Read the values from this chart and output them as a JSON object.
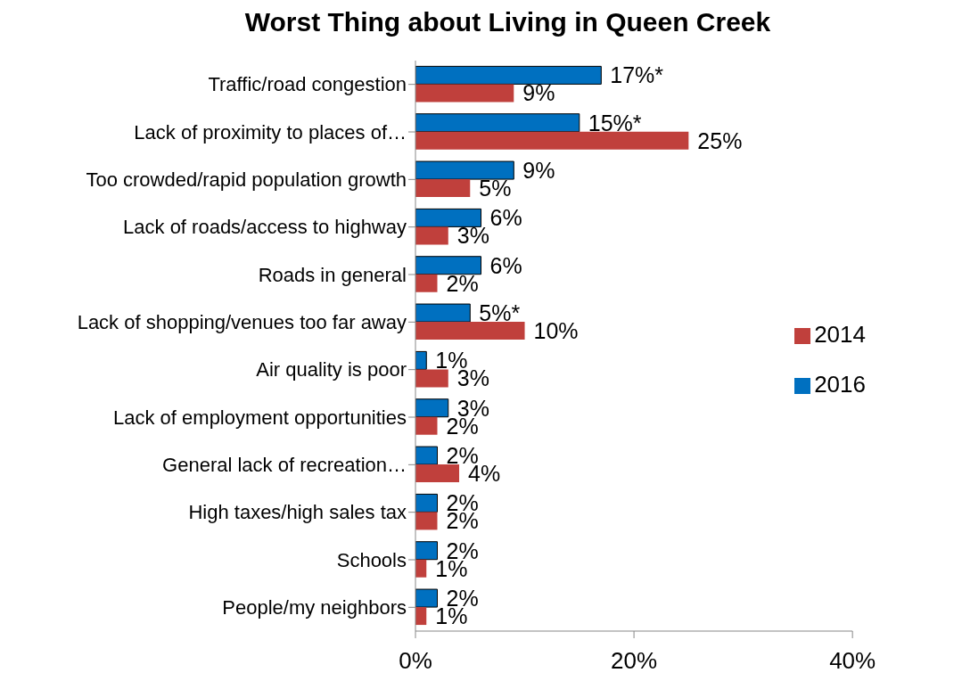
{
  "chart_data": {
    "type": "bar",
    "orientation": "horizontal",
    "title": "Worst Thing about Living in Queen Creek",
    "categories": [
      "Traffic/road congestion",
      "Lack of proximity to places of…",
      "Too crowded/rapid population growth",
      "Lack of roads/access to highway",
      "Roads in general",
      "Lack of shopping/venues too far away",
      "Air quality is poor",
      "Lack of employment opportunities",
      "General lack of recreation…",
      "High taxes/high sales tax",
      "Schools",
      "People/my neighbors"
    ],
    "series": [
      {
        "name": "2016",
        "color": "#0070c0",
        "values": [
          17,
          15,
          9,
          6,
          6,
          5,
          1,
          3,
          2,
          2,
          2,
          2
        ],
        "value_labels": [
          "17%*",
          "15%*",
          "9%",
          "6%",
          "6%",
          "5%*",
          "1%",
          "3%",
          "2%",
          "2%",
          "2%",
          "2%"
        ]
      },
      {
        "name": "2014",
        "color": "#c0403c",
        "values": [
          9,
          25,
          5,
          3,
          2,
          10,
          3,
          2,
          4,
          2,
          1,
          1
        ],
        "value_labels": [
          "9%",
          "25%",
          "5%",
          "3%",
          "2%",
          "10%",
          "3%",
          "2%",
          "4%",
          "2%",
          "1%",
          "1%"
        ]
      }
    ],
    "xlim": [
      0,
      40
    ],
    "xticks": [
      {
        "value": 0,
        "label": "0%"
      },
      {
        "value": 20,
        "label": "20%"
      },
      {
        "value": 40,
        "label": "40%"
      }
    ],
    "legend": "right"
  }
}
